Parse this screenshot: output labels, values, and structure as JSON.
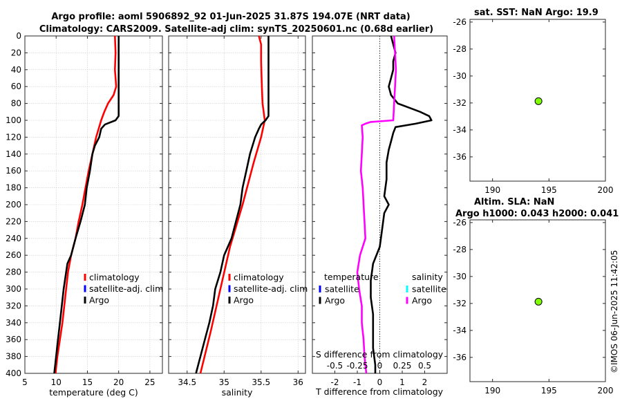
{
  "title_line1": "Argo profile: aoml 5906892_92 01-Jun-2025 31.87S 194.07E (NRT data)",
  "title_line2": "Climatology: CARS2009. Satellite-adj clim: synTS_20250601.nc (0.68d earlier)",
  "watermark": "©IMOS 06-Jun-2025 11:42:05",
  "colors": {
    "climatology": "#ff0000",
    "satellite": "#0000ff",
    "argo": "#000000",
    "sat_s": "#00ffff",
    "argo_s": "#ff00ff",
    "dot": "#7fff00"
  },
  "chart_data": [
    {
      "type": "line",
      "id": "temperature",
      "xlabel": "temperature (deg C)",
      "xlim": [
        5,
        27
      ],
      "ylim": [
        0,
        400
      ],
      "xticks": [
        5,
        10,
        15,
        20,
        25
      ],
      "yticks": [
        0,
        20,
        40,
        60,
        80,
        100,
        120,
        140,
        160,
        180,
        200,
        220,
        240,
        260,
        280,
        300,
        320,
        340,
        360,
        380,
        400
      ],
      "legend": [
        "climatology",
        "satellite-adj. clim",
        "Argo"
      ],
      "series": [
        {
          "name": "climatology",
          "color": "#ff0000",
          "depth": [
            0,
            20,
            40,
            60,
            70,
            80,
            90,
            100,
            120,
            140,
            160,
            180,
            200,
            220,
            240,
            260,
            280,
            300,
            320,
            340,
            360,
            380,
            400
          ],
          "values": [
            19.4,
            19.5,
            19.4,
            19.6,
            19.2,
            18.3,
            17.7,
            17.2,
            16.4,
            15.8,
            15.2,
            14.7,
            14.2,
            13.6,
            13.1,
            12.4,
            11.9,
            11.6,
            11.3,
            11.0,
            10.6,
            10.2,
            9.9
          ]
        },
        {
          "name": "Argo",
          "color": "#000000",
          "depth": [
            0,
            20,
            40,
            60,
            80,
            95,
            100,
            105,
            110,
            120,
            130,
            140,
            160,
            180,
            200,
            220,
            240,
            260,
            270,
            280,
            300,
            320,
            340,
            360,
            380,
            400
          ],
          "values": [
            20.0,
            20.0,
            20.0,
            20.0,
            20.0,
            20.0,
            19.5,
            17.8,
            17.2,
            16.9,
            16.2,
            15.8,
            15.4,
            14.9,
            14.6,
            13.9,
            13.1,
            12.4,
            11.8,
            11.6,
            11.2,
            10.9,
            10.6,
            10.3,
            10.0,
            9.7
          ]
        }
      ]
    },
    {
      "type": "line",
      "id": "salinity",
      "xlabel": "salinity",
      "xlim": [
        34.25,
        36.1
      ],
      "ylim": [
        0,
        400
      ],
      "xticks": [
        34.5,
        35,
        35.5,
        36
      ],
      "xticklabels": [
        "34.5",
        "35",
        "35.5",
        "36"
      ],
      "legend": [
        "climatology",
        "satellite-adj. clim",
        "Argo"
      ],
      "series": [
        {
          "name": "climatology",
          "color": "#ff0000",
          "depth": [
            0,
            10,
            30,
            60,
            80,
            100,
            120,
            150,
            200,
            250,
            300,
            350,
            400
          ],
          "values": [
            35.47,
            35.5,
            35.5,
            35.51,
            35.52,
            35.55,
            35.5,
            35.4,
            35.25,
            35.08,
            34.95,
            34.82,
            34.68
          ]
        },
        {
          "name": "Argo",
          "color": "#000000",
          "depth": [
            0,
            20,
            40,
            60,
            80,
            95,
            100,
            105,
            110,
            120,
            140,
            160,
            180,
            200,
            220,
            240,
            260,
            280,
            300,
            320,
            340,
            360,
            380,
            400
          ],
          "values": [
            35.6,
            35.6,
            35.6,
            35.6,
            35.6,
            35.6,
            35.56,
            35.5,
            35.47,
            35.42,
            35.35,
            35.3,
            35.25,
            35.22,
            35.16,
            35.1,
            35.0,
            34.95,
            34.88,
            34.85,
            34.8,
            34.74,
            34.68,
            34.62
          ]
        }
      ]
    },
    {
      "type": "line",
      "id": "difference",
      "xlabel": "T difference from climatology",
      "top_label": "S difference from climatology",
      "xlim": [
        -3,
        3
      ],
      "ylim": [
        0,
        400
      ],
      "xticks": [
        -2,
        -1,
        0,
        1,
        2
      ],
      "xticklabels": [
        "-2",
        "-1",
        "0",
        "1",
        "2"
      ],
      "top_ticklabels": [
        "-0.5",
        "-0.25",
        "0",
        "0.25",
        "0.5"
      ],
      "legend_left_title": "temperature",
      "legend_right_title": "salinity",
      "legend_left": [
        "satellite",
        "Argo"
      ],
      "legend_right": [
        "satellite",
        "Argo"
      ],
      "series": [
        {
          "name": "T Argo",
          "color": "#000000",
          "depth": [
            0,
            10,
            20,
            30,
            40,
            50,
            60,
            70,
            80,
            85,
            90,
            95,
            100,
            104,
            108,
            115,
            125,
            135,
            150,
            170,
            190,
            200,
            210,
            230,
            250,
            270,
            290,
            310,
            330,
            350,
            370,
            390,
            400
          ],
          "values": [
            0.5,
            0.6,
            0.7,
            0.6,
            0.6,
            0.5,
            0.4,
            0.5,
            0.8,
            1.3,
            1.8,
            2.2,
            2.3,
            1.6,
            0.7,
            0.6,
            0.5,
            0.4,
            0.3,
            0.3,
            0.2,
            0.4,
            0.2,
            0.1,
            0.0,
            -0.3,
            -0.4,
            -0.4,
            -0.3,
            -0.3,
            -0.3,
            -0.2,
            -0.2
          ]
        },
        {
          "name": "S Argo",
          "color": "#ff00ff",
          "depth": [
            0,
            20,
            40,
            60,
            80,
            100,
            102,
            104,
            106,
            120,
            140,
            160,
            180,
            200,
            220,
            240,
            260,
            280,
            300,
            320,
            340,
            360,
            380,
            400
          ],
          "values": [
            0.16,
            0.17,
            0.18,
            0.17,
            0.16,
            0.15,
            -0.1,
            -0.16,
            -0.2,
            -0.19,
            -0.2,
            -0.21,
            -0.19,
            -0.18,
            -0.17,
            -0.16,
            -0.22,
            -0.25,
            -0.23,
            -0.2,
            -0.2,
            -0.18,
            -0.17,
            -0.15
          ]
        }
      ]
    },
    {
      "type": "scatter",
      "id": "sst_map",
      "title": "sat. SST: NaN Argo: 19.9",
      "xlim": [
        188,
        200
      ],
      "ylim": [
        -37.8,
        -25.8
      ],
      "xticks": [
        190,
        195,
        200
      ],
      "yticks": [
        -26,
        -28,
        -30,
        -32,
        -34,
        -36
      ],
      "points": [
        {
          "x": 194.07,
          "y": -31.87
        }
      ]
    },
    {
      "type": "scatter",
      "id": "sla_map",
      "title_line1": "Altim. SLA: NaN",
      "title_line2": "Argo h1000: 0.043 h2000: 0.041",
      "xlim": [
        188,
        200
      ],
      "ylim": [
        -37.8,
        -25.8
      ],
      "xticks": [
        190,
        195,
        200
      ],
      "yticks": [
        -26,
        -28,
        -30,
        -32,
        -34,
        -36
      ],
      "points": [
        {
          "x": 194.07,
          "y": -31.87
        }
      ]
    }
  ]
}
